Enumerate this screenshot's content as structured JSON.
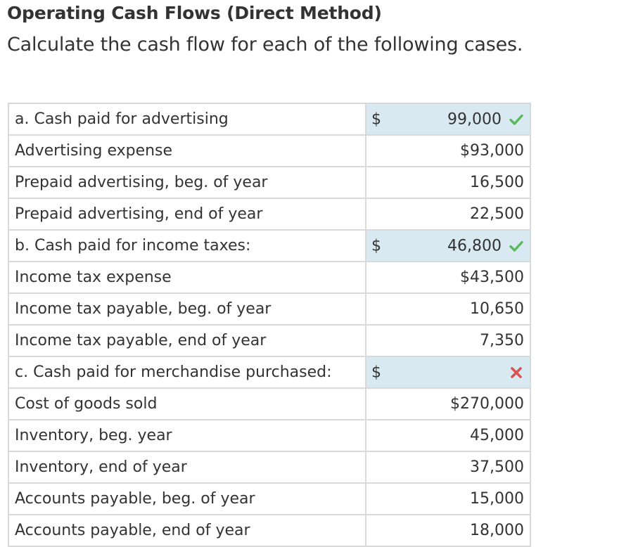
{
  "header": {
    "title": "Operating Cash Flows (Direct Method)",
    "subtitle": "Calculate the cash flow for each of the following cases."
  },
  "rows": [
    {
      "label": "a. Cash paid for advertising",
      "type": "answer",
      "currency": "$",
      "value": "99,000",
      "status": "correct",
      "status_icon": "check-icon"
    },
    {
      "label": "Advertising expense",
      "type": "given",
      "value": "$93,000"
    },
    {
      "label": "Prepaid advertising, beg. of year",
      "type": "given",
      "value": "16,500"
    },
    {
      "label": "Prepaid advertising, end of year",
      "type": "given",
      "value": "22,500"
    },
    {
      "label": "b. Cash paid for income taxes:",
      "type": "answer",
      "currency": "$",
      "value": "46,800",
      "status": "correct",
      "status_icon": "check-icon"
    },
    {
      "label": "Income tax expense",
      "type": "given",
      "value": "$43,500"
    },
    {
      "label": "Income tax payable, beg. of year",
      "type": "given",
      "value": "10,650"
    },
    {
      "label": "Income tax payable, end of year",
      "type": "given",
      "value": "7,350"
    },
    {
      "label": "c. Cash paid for merchandise purchased:",
      "type": "answer",
      "currency": "$",
      "value": "",
      "status": "incorrect",
      "status_icon": "cross-icon"
    },
    {
      "label": "Cost of goods sold",
      "type": "given",
      "value": "$270,000"
    },
    {
      "label": "Inventory, beg. year",
      "type": "given",
      "value": "45,000"
    },
    {
      "label": "Inventory, end of year",
      "type": "given",
      "value": "37,500"
    },
    {
      "label": "Accounts payable, beg. of year",
      "type": "given",
      "value": "15,000"
    },
    {
      "label": "Accounts payable, end of year",
      "type": "given",
      "value": "18,000"
    }
  ],
  "colors": {
    "answer_cell_bg": "#d9e9f2",
    "correct": "#5cb85c",
    "incorrect": "#d9534f",
    "border": "#d9d9d9",
    "text": "#333333"
  }
}
